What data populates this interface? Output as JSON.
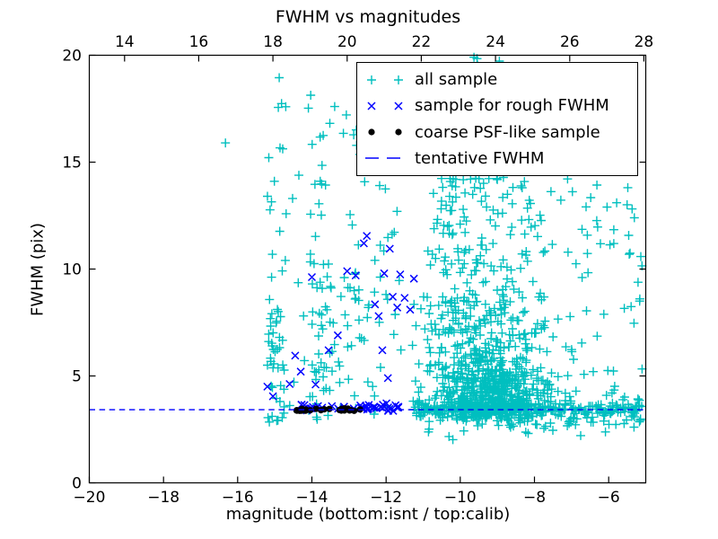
{
  "figure": {
    "title": "FWHM vs magnitudes",
    "xlabel": "magnitude (bottom:isnt / top:calib)",
    "ylabel": "FWHM (pix)",
    "background": "#ffffff",
    "text_color": "#000000"
  },
  "legend": {
    "entries": [
      {
        "label": "all sample",
        "marker": "plus",
        "color": "#00bfbf"
      },
      {
        "label": "sample for rough FWHM",
        "marker": "x",
        "color": "#0000ff"
      },
      {
        "label": "coarse PSF-like sample",
        "marker": "dot",
        "color": "#000000"
      },
      {
        "label": "tentative FWHM",
        "marker": "dash",
        "color": "#0000ff"
      }
    ]
  },
  "chart_data": {
    "type": "scatter",
    "title": "FWHM vs magnitudes",
    "xlabel": "magnitude (bottom:isnt / top:calib)",
    "ylabel": "FWHM (pix)",
    "x_axis": {
      "min": -20,
      "max": -5,
      "ticks": [
        -20,
        -18,
        -16,
        -14,
        -12,
        -10,
        -8,
        -6
      ]
    },
    "y_axis": {
      "min": 0,
      "max": 20,
      "ticks": [
        0,
        5,
        10,
        15,
        20
      ]
    },
    "top_axis": {
      "ticks": [
        14,
        16,
        18,
        20,
        22,
        24,
        26,
        28
      ],
      "offset_from_bottom": 33.05
    },
    "grid": false,
    "legend_position": "upper right",
    "seed": 42,
    "tentative_fwhm_y": 3.42,
    "series": [
      {
        "name": "all sample",
        "marker": "plus",
        "color": "#00bfbf",
        "points": [
          [
            -16.33,
            15.9
          ],
          [
            -10.2,
            2.02
          ],
          [
            -14.88,
            18.95
          ],
          [
            -12.15,
            18.45
          ]
        ],
        "clusters": [
          {
            "n": 42,
            "x": {
              "dist": "uniform",
              "min": -15.2,
              "max": -14.72
            },
            "y": {
              "dist": "uniform",
              "min": 2.75,
              "max": 8.6
            }
          },
          {
            "n": 15,
            "x": {
              "dist": "uniform",
              "min": -15.25,
              "max": -14.7
            },
            "y": {
              "dist": "uniform",
              "min": 8.6,
              "max": 18.7
            }
          },
          {
            "n": 8,
            "x": {
              "dist": "uniform",
              "min": -14.7,
              "max": -14.15
            },
            "y": {
              "dist": "uniform",
              "min": 3.0,
              "max": 16.0
            }
          },
          {
            "n": 45,
            "x": {
              "dist": "uniform",
              "min": -14.1,
              "max": -13.38
            },
            "y": {
              "dist": "uniform",
              "min": 2.75,
              "max": 10.3
            }
          },
          {
            "n": 18,
            "x": {
              "dist": "uniform",
              "min": -14.15,
              "max": -13.35
            },
            "y": {
              "dist": "uniform",
              "min": 10.3,
              "max": 18.6
            }
          },
          {
            "n": 30,
            "x": {
              "dist": "uniform",
              "min": -13.3,
              "max": -12.45
            },
            "y": {
              "dist": "uniform",
              "min": 2.8,
              "max": 10.0
            }
          },
          {
            "n": 10,
            "x": {
              "dist": "uniform",
              "min": -13.3,
              "max": -12.5
            },
            "y": {
              "dist": "uniform",
              "min": 10.0,
              "max": 17.5
            }
          },
          {
            "n": 22,
            "x": {
              "dist": "uniform",
              "min": -12.4,
              "max": -11.5
            },
            "y": {
              "dist": "uniform",
              "min": 2.9,
              "max": 12.5
            }
          },
          {
            "n": 8,
            "x": {
              "dist": "uniform",
              "min": -12.45,
              "max": -11.3
            },
            "y": {
              "dist": "uniform",
              "min": 12.5,
              "max": 18.6
            }
          },
          {
            "n": 550,
            "x": {
              "dist": "gauss",
              "mean": -9.25,
              "sd": 0.85,
              "min": -11.3,
              "max": -6.5
            },
            "y": {
              "dist": "gauss",
              "mean": 4.2,
              "sd": 0.95,
              "min": 2.9,
              "max": 7.5
            }
          },
          {
            "n": 200,
            "x": {
              "dist": "gauss",
              "mean": -9.35,
              "sd": 1.0,
              "min": -11.3,
              "max": -6.6
            },
            "y": {
              "dist": "gauss",
              "mean": 7.6,
              "sd": 1.3,
              "min": 5.2,
              "max": 11.0
            }
          },
          {
            "n": 110,
            "x": {
              "dist": "gauss",
              "mean": -9.3,
              "sd": 1.1,
              "min": -11.0,
              "max": -6.8
            },
            "y": {
              "dist": "uniform",
              "min": 10.0,
              "max": 14.3
            }
          },
          {
            "n": 38,
            "x": {
              "dist": "gauss",
              "mean": -9.4,
              "sd": 1.0,
              "min": -10.8,
              "max": -7.0
            },
            "y": {
              "dist": "uniform",
              "min": 14.3,
              "max": 18.8
            }
          },
          {
            "n": 4,
            "x": {
              "dist": "uniform",
              "min": -9.8,
              "max": -8.6
            },
            "y": {
              "dist": "uniform",
              "min": 19.5,
              "max": 19.95
            }
          },
          {
            "n": 180,
            "x": {
              "dist": "uniform",
              "min": -11.3,
              "max": -5.05
            },
            "y": {
              "dist": "gauss",
              "mean": 3.45,
              "sd": 0.18,
              "min": 3.0,
              "max": 3.95
            }
          },
          {
            "n": 140,
            "x": {
              "dist": "gauss",
              "mean": -9.0,
              "sd": 1.2,
              "min": -11.3,
              "max": -5.05
            },
            "y": {
              "dist": "gauss",
              "mean": 3.45,
              "sd": 0.2,
              "min": 3.0,
              "max": 3.95
            }
          },
          {
            "n": 55,
            "x": {
              "dist": "uniform",
              "min": -10.9,
              "max": -5.1
            },
            "y": {
              "dist": "gauss",
              "mean": 3.0,
              "sd": 0.4,
              "min": 1.95,
              "max": 3.1
            }
          },
          {
            "n": 50,
            "x": {
              "dist": "uniform",
              "min": -7.25,
              "max": -5.05
            },
            "y": {
              "dist": "uniform",
              "min": 3.9,
              "max": 15.0
            }
          }
        ]
      },
      {
        "name": "sample for rough FWHM",
        "marker": "x",
        "color": "#0000ff",
        "points": [
          [
            -15.2,
            4.5
          ],
          [
            -15.05,
            4.05
          ],
          [
            -14.6,
            4.62
          ],
          [
            -14.45,
            5.95
          ],
          [
            -14.3,
            5.2
          ],
          [
            -14.0,
            9.62
          ],
          [
            -13.9,
            4.6
          ],
          [
            -13.55,
            6.2
          ],
          [
            -13.3,
            6.9
          ],
          [
            -13.05,
            9.9
          ],
          [
            -12.82,
            9.7
          ],
          [
            -12.6,
            11.2
          ],
          [
            -12.52,
            11.55
          ],
          [
            -12.3,
            8.35
          ],
          [
            -12.2,
            7.8
          ],
          [
            -12.1,
            6.2
          ],
          [
            -12.05,
            9.8
          ],
          [
            -11.95,
            4.9
          ],
          [
            -11.9,
            10.95
          ],
          [
            -11.82,
            8.7
          ],
          [
            -11.7,
            8.2
          ],
          [
            -11.62,
            9.75
          ],
          [
            -11.5,
            8.65
          ],
          [
            -11.35,
            8.1
          ],
          [
            -11.25,
            9.55
          ]
        ],
        "clusters": [
          {
            "n": 26,
            "x": {
              "dist": "uniform",
              "min": -12.72,
              "max": -11.56
            },
            "y": {
              "dist": "gauss",
              "mean": 3.5,
              "sd": 0.12,
              "min": 3.25,
              "max": 3.8
            }
          },
          {
            "n": 14,
            "x": {
              "dist": "uniform",
              "min": -14.55,
              "max": -12.72
            },
            "y": {
              "dist": "gauss",
              "mean": 3.5,
              "sd": 0.1,
              "min": 3.3,
              "max": 3.7
            }
          }
        ]
      },
      {
        "name": "coarse PSF-like sample",
        "marker": "dot",
        "color": "#000000",
        "points": [],
        "clusters": [
          {
            "n": 24,
            "x": {
              "dist": "uniform",
              "min": -14.55,
              "max": -12.62
            },
            "y": {
              "dist": "uniform",
              "min": 3.36,
              "max": 3.5
            }
          }
        ]
      },
      {
        "name": "tentative FWHM",
        "marker": "dash",
        "color": "#0000ff",
        "hline": 3.42
      }
    ]
  }
}
